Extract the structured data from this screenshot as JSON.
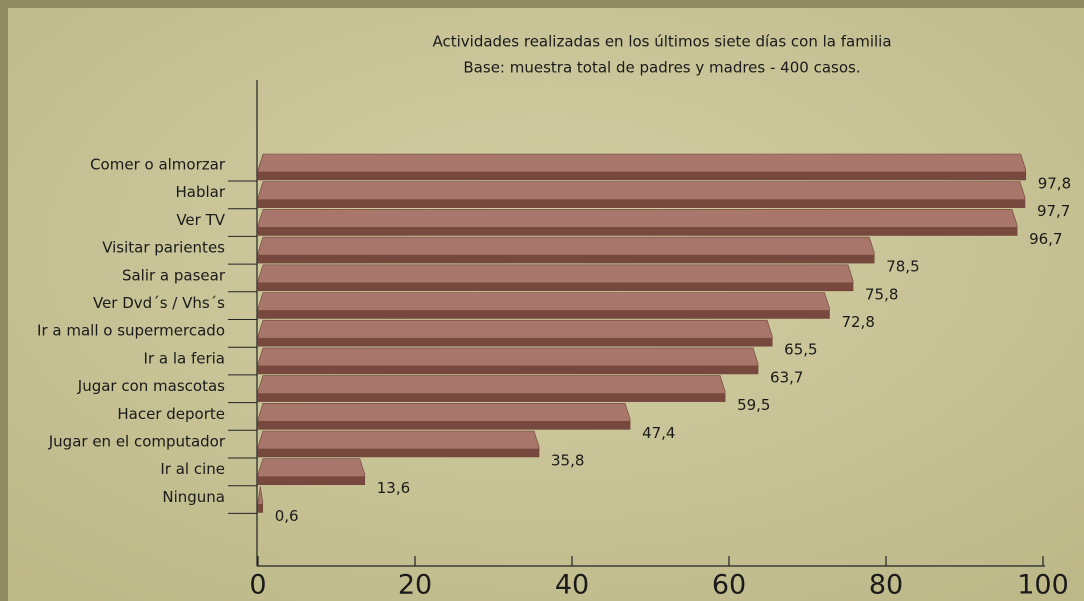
{
  "chart_data": {
    "type": "bar",
    "orientation": "horizontal",
    "title": "Actividades realizadas en los últimos siete días con la familia",
    "subtitle": "Base: muestra total de padres y madres - 400 casos.",
    "categories": [
      "Comer o almorzar",
      "Hablar",
      "Ver TV",
      "Visitar parientes",
      "Salir a pasear",
      "Ver Dvd´s / Vhs´s",
      "Ir a mall o supermercado",
      "Ir a la feria",
      "Jugar con mascotas",
      "Hacer deporte",
      "Jugar en el computador",
      "Ir al cine",
      "Ninguna"
    ],
    "values": [
      97.8,
      97.7,
      96.7,
      78.5,
      75.8,
      72.8,
      65.5,
      63.7,
      59.5,
      47.4,
      35.8,
      13.6,
      0.6
    ],
    "value_labels": [
      "97,8",
      "97,7",
      "96,7",
      "78,5",
      "75,8",
      "72,8",
      "65,5",
      "63,7",
      "59,5",
      "47,4",
      "35,8",
      "13,6",
      "0,6"
    ],
    "color": "#a8766a",
    "xlim": [
      0,
      100
    ],
    "xticks": [
      0,
      20,
      40,
      60,
      80,
      100
    ]
  }
}
